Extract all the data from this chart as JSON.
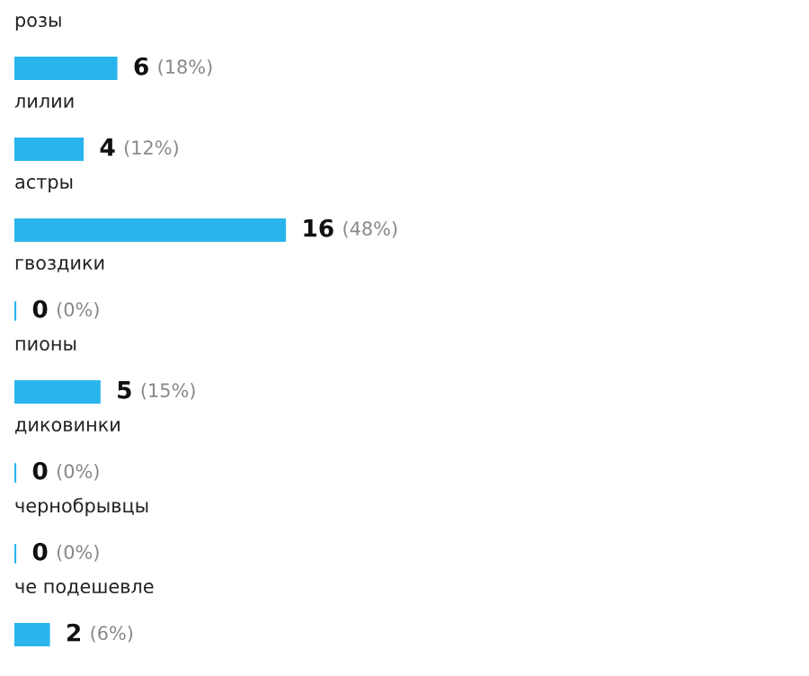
{
  "chart_data": {
    "type": "bar",
    "orientation": "horizontal",
    "categories": [
      "розы",
      "лилии",
      "астры",
      "гвоздики",
      "пионы",
      "диковинки",
      "чернобрывцы",
      "че подешевле"
    ],
    "values": [
      6,
      4,
      16,
      0,
      5,
      0,
      0,
      2
    ],
    "value_labels": [
      "6 (18%)",
      "4 (12%)",
      "16 (48%)",
      "0 (0%)",
      "5 (15%)",
      "0 (0%)",
      "0 (0%)",
      "2 (6%)"
    ],
    "color": "#29b4ec",
    "tick_labels": "y"
  }
}
